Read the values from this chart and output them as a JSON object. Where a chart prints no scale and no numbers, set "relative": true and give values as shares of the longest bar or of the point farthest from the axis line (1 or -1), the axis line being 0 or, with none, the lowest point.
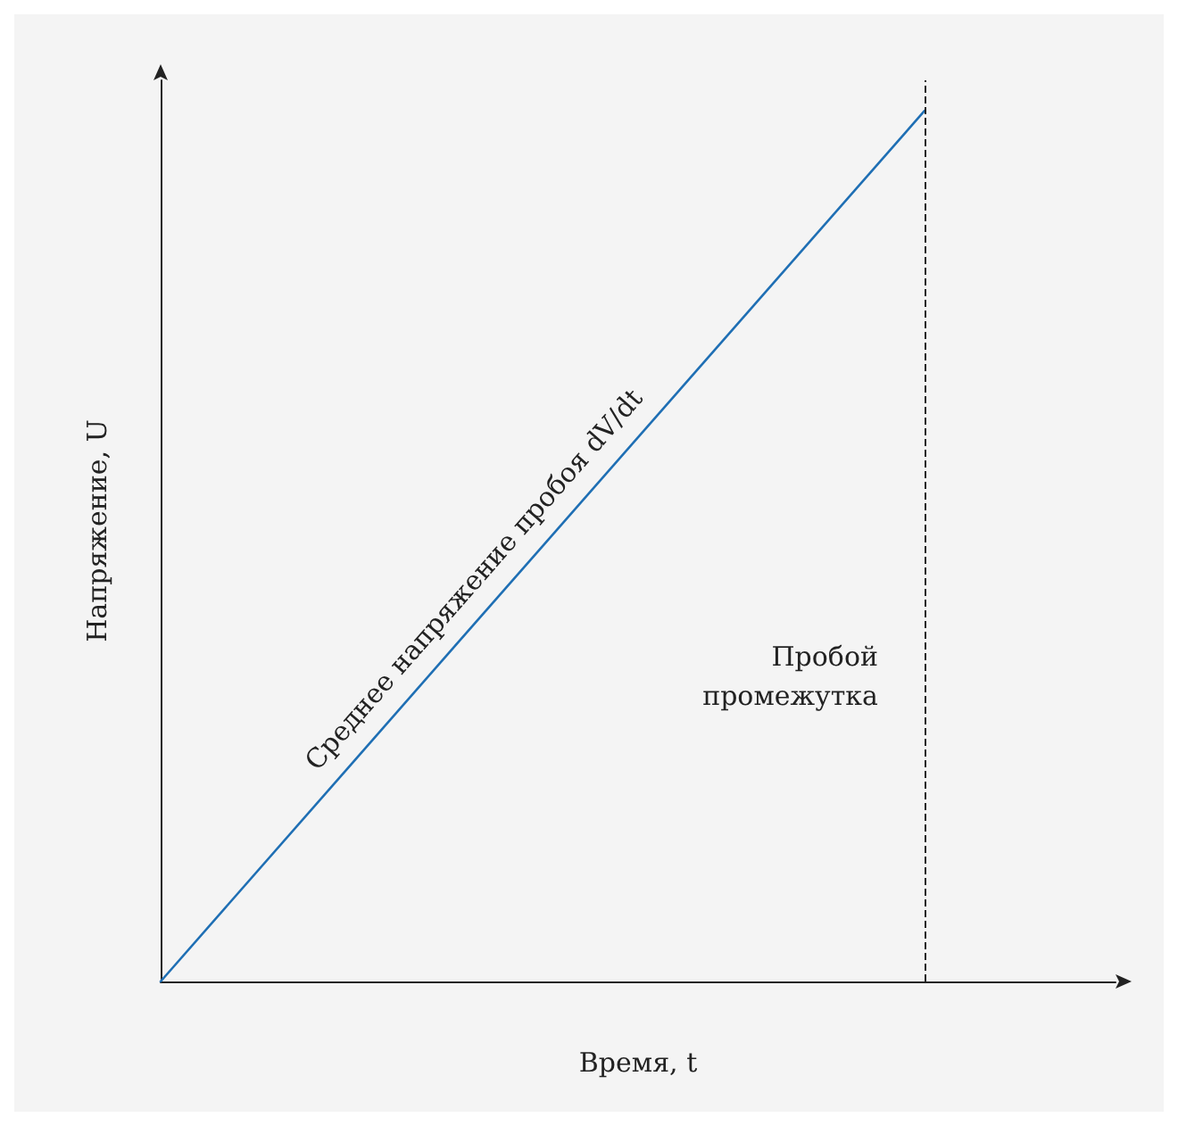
{
  "chart_data": {
    "type": "line",
    "relative": true,
    "xlabel": "Время, t",
    "ylabel": "Напряжение, U",
    "categories": [
      null,
      null,
      null,
      null,
      null,
      null
    ],
    "tick_labels": false,
    "grid": false,
    "marker": "none",
    "line_style": "solid",
    "series": [
      {
        "color": "#1f6fb4",
        "values": [
          0,
          0.25,
          0.5,
          0.75,
          1,
          null
        ]
      }
    ],
    "annotations": [
      "Среднее напряжение пробоя dV/dt"
    ],
    "ref_lines": [
      {
        "axis": "x",
        "label": "Пробой промежутка",
        "color": "#222222",
        "line_style": "dashed"
      }
    ]
  }
}
